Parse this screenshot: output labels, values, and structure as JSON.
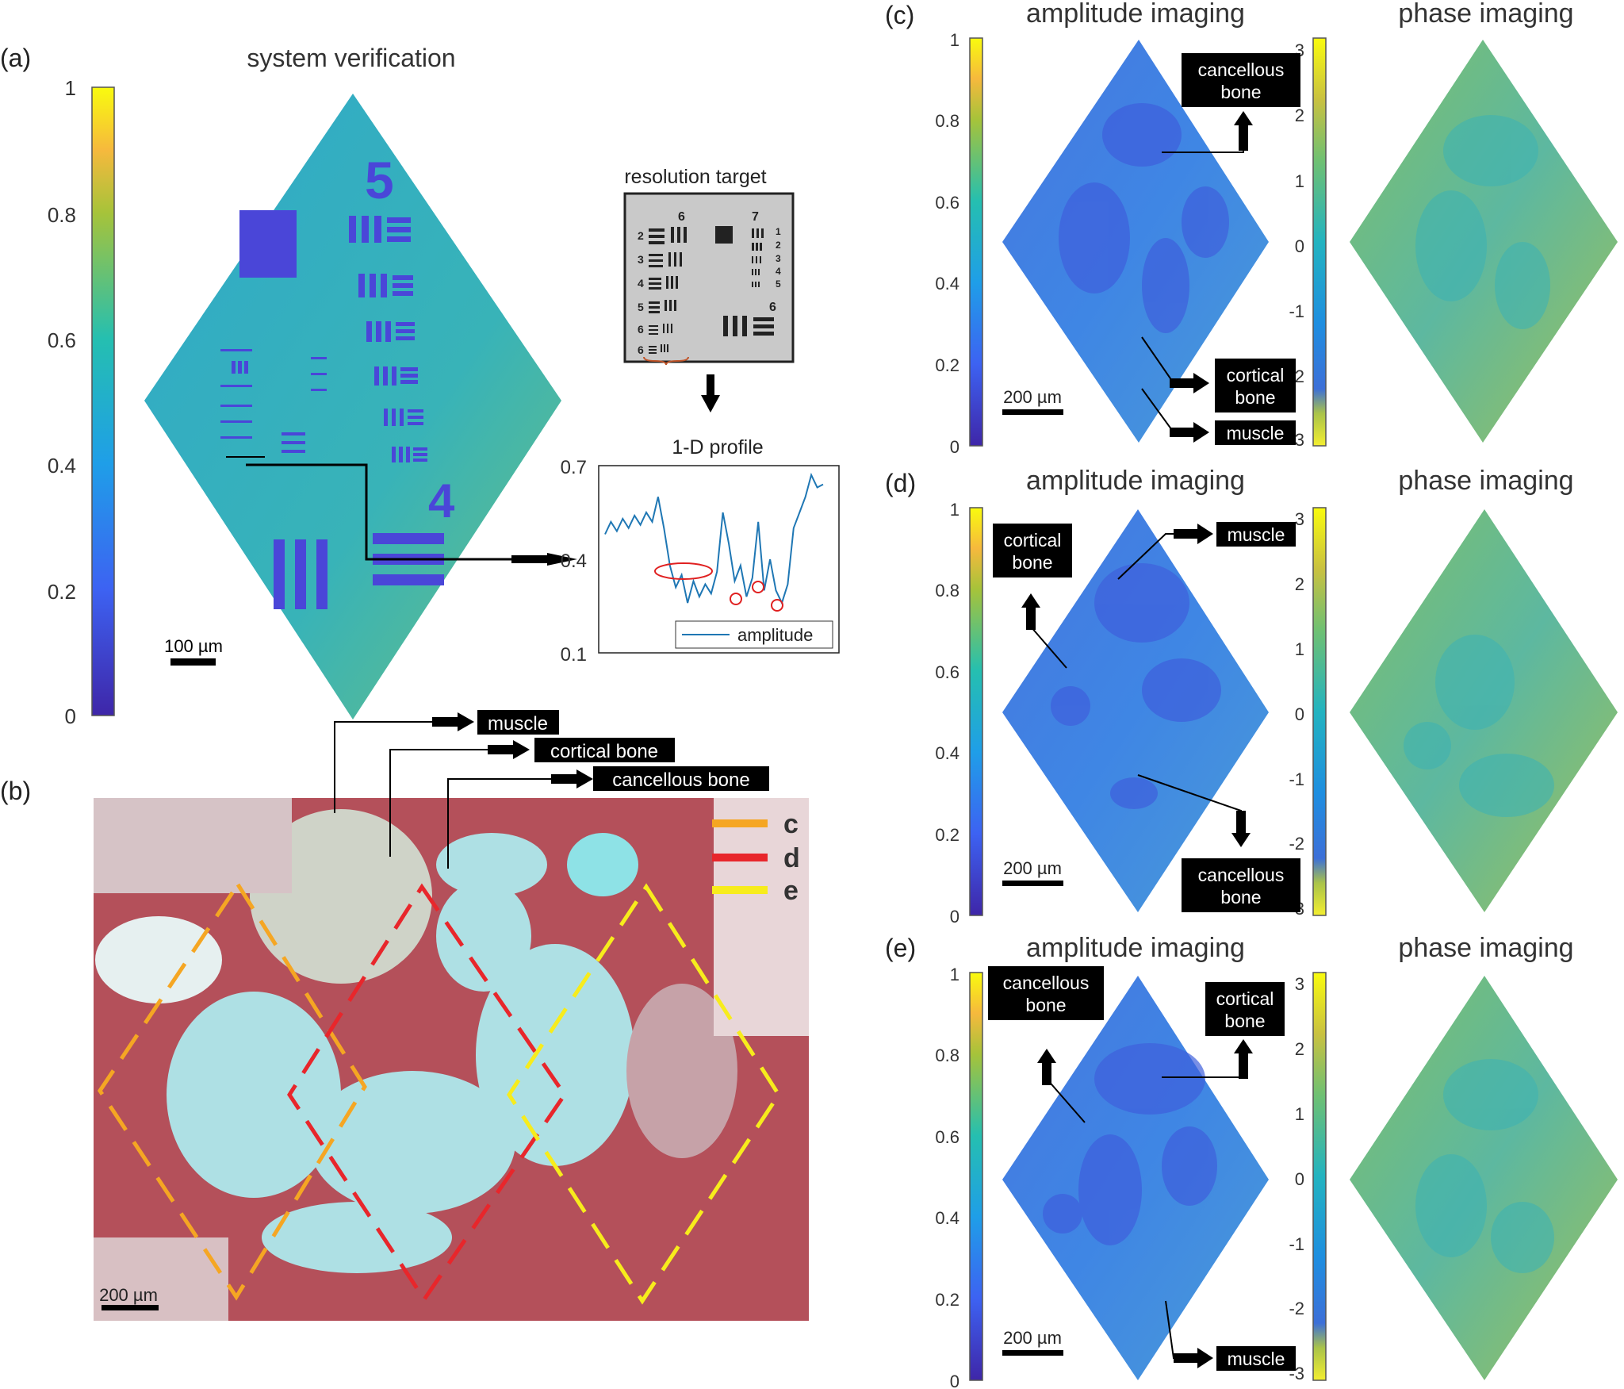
{
  "panel_a": {
    "label": "(a)",
    "title": "system verification",
    "colorbar_ticks": [
      "0",
      "0.2",
      "0.4",
      "0.6",
      "0.8",
      "1"
    ],
    "scalebar": "100 µm",
    "target_title": "resolution target",
    "target_numbers": [
      "6",
      "7",
      "2",
      "1",
      "3",
      "2",
      "4",
      "3",
      "5",
      "4",
      "6",
      "5",
      "6",
      "6"
    ],
    "profile": {
      "title": "1-D profile",
      "yticks": [
        "0.1",
        "0.4",
        "0.7"
      ],
      "legend": "amplitude",
      "ylim": [
        0.1,
        0.7
      ],
      "y": [
        0.48,
        0.52,
        0.49,
        0.53,
        0.5,
        0.54,
        0.51,
        0.55,
        0.52,
        0.6,
        0.5,
        0.38,
        0.31,
        0.35,
        0.26,
        0.33,
        0.28,
        0.32,
        0.29,
        0.36,
        0.55,
        0.45,
        0.33,
        0.38,
        0.28,
        0.34,
        0.52,
        0.3,
        0.4,
        0.3,
        0.26,
        0.32,
        0.5,
        0.55,
        0.6,
        0.67,
        0.63,
        0.64
      ]
    }
  },
  "panel_b": {
    "label": "(b)",
    "legend": [
      "c",
      "d",
      "e"
    ],
    "colors": {
      "c": "#f5a623",
      "d": "#e8262b",
      "e": "#f7ec1c"
    },
    "scalebar": "200 µm",
    "callouts": [
      "muscle",
      "cortical bone",
      "cancellous bone"
    ]
  },
  "panel_c": {
    "label": "(c)",
    "amp_title": "amplitude imaging",
    "phase_title": "phase imaging",
    "amp_ticks": [
      "0",
      "0.2",
      "0.4",
      "0.6",
      "0.8",
      "1"
    ],
    "phase_ticks": [
      "-3",
      "-2",
      "-1",
      "0",
      "1",
      "2",
      "3"
    ],
    "scalebar": "200 µm",
    "callouts": [
      [
        "cancellous",
        "bone"
      ],
      [
        "cortical",
        "bone"
      ],
      [
        "muscle"
      ]
    ]
  },
  "panel_d": {
    "label": "(d)",
    "amp_title": "amplitude imaging",
    "phase_title": "phase imaging",
    "amp_ticks": [
      "0",
      "0.2",
      "0.4",
      "0.6",
      "0.8",
      "1"
    ],
    "phase_ticks": [
      "-3",
      "-2",
      "-1",
      "0",
      "1",
      "2",
      "3"
    ],
    "scalebar": "200 µm",
    "callouts": [
      [
        "cortical",
        "bone"
      ],
      [
        "muscle"
      ],
      [
        "cancellous",
        "bone"
      ]
    ]
  },
  "panel_e": {
    "label": "(e)",
    "amp_title": "amplitude imaging",
    "phase_title": "phase imaging",
    "amp_ticks": [
      "0",
      "0.2",
      "0.4",
      "0.6",
      "0.8",
      "1"
    ],
    "phase_ticks": [
      "-3",
      "-2",
      "-1",
      "0",
      "1",
      "2",
      "3"
    ],
    "scalebar": "200 µm",
    "callouts": [
      [
        "cancellous",
        "bone"
      ],
      [
        "cortical",
        "bone"
      ],
      [
        "muscle"
      ]
    ]
  }
}
